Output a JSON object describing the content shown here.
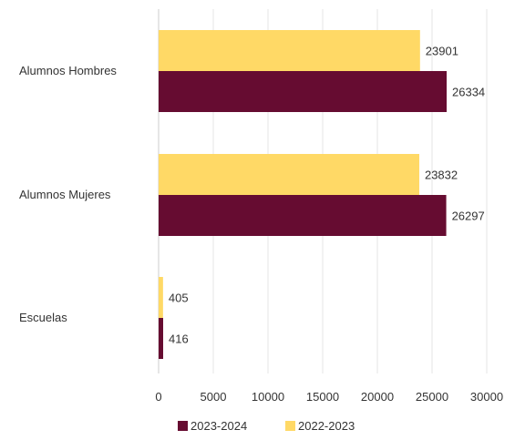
{
  "chart_data": {
    "type": "bar",
    "orientation": "horizontal",
    "categories": [
      "Alumnos Hombres",
      "Alumnos Mujeres",
      "Escuelas"
    ],
    "series": [
      {
        "name": "2022-2023",
        "values": [
          23901,
          23832,
          405
        ],
        "color": "#FFD966"
      },
      {
        "name": "2023-2024",
        "values": [
          26334,
          26297,
          416
        ],
        "color": "#660C31"
      }
    ],
    "x_ticks": [
      "0",
      "5000",
      "10000",
      "15000",
      "20000",
      "25000",
      "30000"
    ],
    "xlim": [
      0,
      30000
    ],
    "grid": "vertical",
    "legend": {
      "position": "bottom",
      "order": [
        "2023-2024",
        "2022-2023"
      ]
    },
    "title": "",
    "xlabel": "",
    "ylabel": ""
  }
}
